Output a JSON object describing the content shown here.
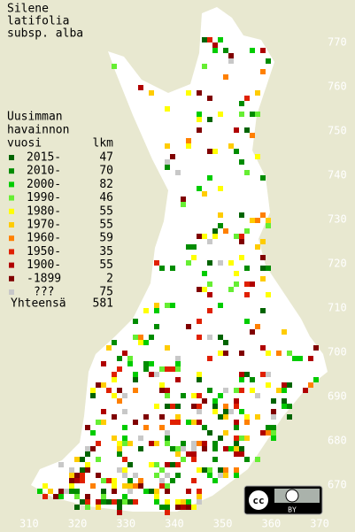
{
  "title": [
    "Silene",
    "latifolia",
    "subsp. alba"
  ],
  "legend": {
    "header": [
      "Uusimman",
      "havainnon"
    ],
    "col_headers": [
      "vuosi",
      "lkm"
    ],
    "rows": [
      {
        "label": "2015-",
        "count": 47,
        "color": "#006400"
      },
      {
        "label": "2010-",
        "count": 70,
        "color": "#008c00"
      },
      {
        "label": "2000-",
        "count": 82,
        "color": "#00cc00"
      },
      {
        "label": "1990-",
        "count": 46,
        "color": "#66ee33"
      },
      {
        "label": "1980-",
        "count": 55,
        "color": "#ffff00"
      },
      {
        "label": "1970-",
        "count": 55,
        "color": "#ffcc00"
      },
      {
        "label": "1960-",
        "count": 59,
        "color": "#ff8000"
      },
      {
        "label": "1950-",
        "count": 35,
        "color": "#e02000"
      },
      {
        "label": "1900-",
        "count": 55,
        "color": "#b00000"
      },
      {
        "label": "-1899",
        "count": 2,
        "color": "#800000"
      },
      {
        "label": "???",
        "count": 75,
        "color": "#c8c8c8"
      }
    ],
    "total": {
      "label": "Yhteensä",
      "count": 581
    }
  },
  "grid": {
    "y_labels": [
      770,
      760,
      750,
      740,
      730,
      720,
      710,
      700,
      690,
      680,
      670
    ],
    "x_labels": [
      310,
      320,
      330,
      340,
      350,
      360,
      370
    ]
  },
  "license": "BY"
}
